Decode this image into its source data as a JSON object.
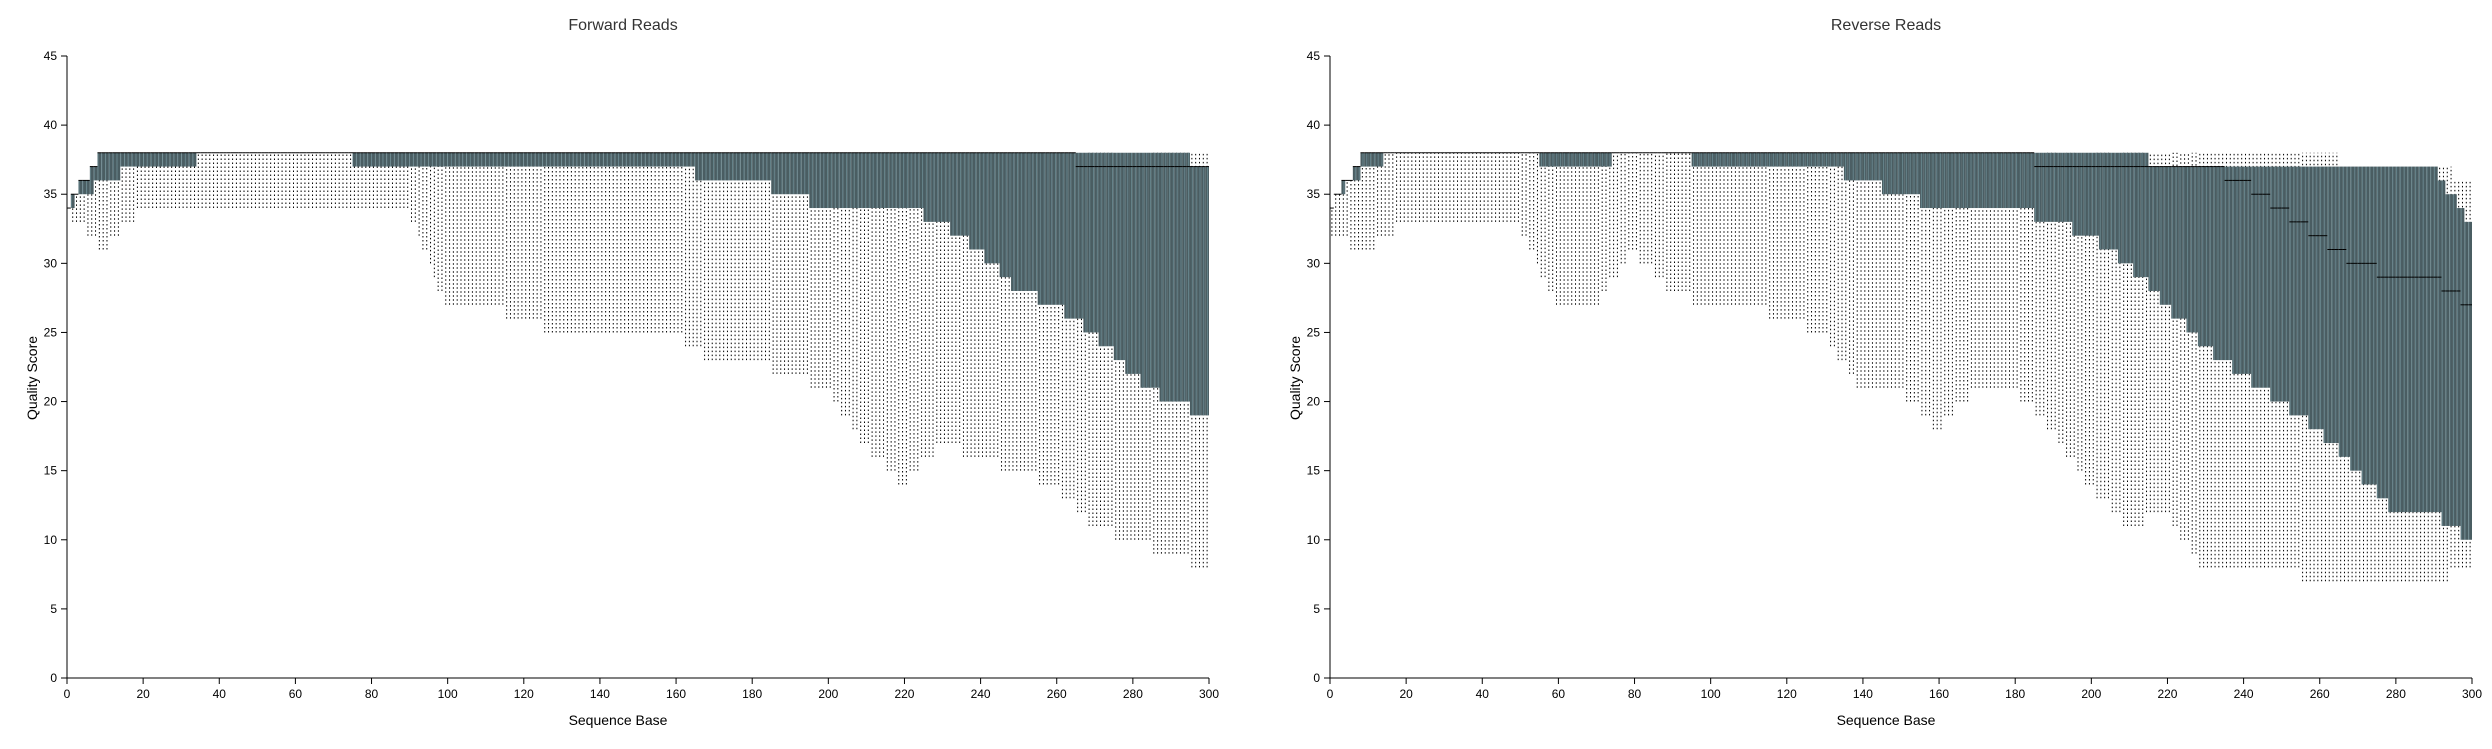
{
  "colors": {
    "box": "#4a5d62",
    "box_stripe": "#6e8e96",
    "whisker": "#000000",
    "axis": "#000000"
  },
  "chart_data": [
    {
      "type": "box",
      "title": "Forward Reads",
      "xlabel": "Sequence Base",
      "ylabel": "Quality Score",
      "xlim": [
        0,
        300
      ],
      "ylim": [
        0,
        45
      ],
      "x_ticks": [
        "0",
        "20",
        "40",
        "60",
        "80",
        "100",
        "120",
        "140",
        "160",
        "180",
        "200",
        "220",
        "240",
        "260",
        "280",
        "300"
      ],
      "y_ticks": [
        "0",
        "5",
        "10",
        "15",
        "20",
        "25",
        "30",
        "35",
        "40",
        "45"
      ],
      "grid": false,
      "legend": "none",
      "x": [
        0,
        10,
        20,
        30,
        40,
        50,
        60,
        70,
        80,
        90,
        100,
        110,
        120,
        130,
        140,
        150,
        160,
        170,
        180,
        190,
        200,
        210,
        220,
        230,
        240,
        250,
        260,
        270,
        280,
        290,
        300
      ],
      "q1": [
        34,
        36,
        37,
        37,
        38,
        38,
        38,
        38,
        37,
        37,
        37,
        37,
        37,
        37,
        37,
        37,
        37,
        36,
        36,
        35,
        34,
        34,
        34,
        33,
        31,
        28,
        27,
        25,
        22,
        20,
        19
      ],
      "median": [
        34,
        38,
        38,
        38,
        38,
        38,
        38,
        38,
        38,
        38,
        38,
        38,
        38,
        38,
        38,
        38,
        38,
        38,
        38,
        38,
        38,
        38,
        38,
        38,
        38,
        38,
        38,
        37,
        37,
        37,
        37
      ],
      "q3": [
        34,
        38,
        38,
        38,
        38,
        38,
        38,
        38,
        38,
        38,
        38,
        38,
        38,
        38,
        38,
        38,
        38,
        38,
        38,
        38,
        38,
        38,
        38,
        38,
        38,
        38,
        38,
        38,
        38,
        38,
        37
      ],
      "low": [
        34,
        31,
        34,
        34,
        34,
        34,
        34,
        34,
        34,
        34,
        27,
        27,
        26,
        25,
        25,
        25,
        25,
        23,
        23,
        22,
        21,
        17,
        14,
        17,
        16,
        15,
        14,
        11,
        10,
        9,
        8
      ],
      "high": [
        34,
        38,
        38,
        38,
        38,
        38,
        38,
        38,
        38,
        38,
        38,
        38,
        38,
        38,
        38,
        38,
        38,
        38,
        38,
        38,
        38,
        38,
        38,
        38,
        38,
        38,
        38,
        38,
        38,
        38,
        38
      ]
    },
    {
      "type": "box",
      "title": "Reverse Reads",
      "xlabel": "Sequence Base",
      "ylabel": "Quality Score",
      "xlim": [
        0,
        300
      ],
      "ylim": [
        0,
        45
      ],
      "x_ticks": [
        "0",
        "20",
        "40",
        "60",
        "80",
        "100",
        "120",
        "140",
        "160",
        "180",
        "200",
        "220",
        "240",
        "260",
        "280",
        "300"
      ],
      "y_ticks": [
        "0",
        "5",
        "10",
        "15",
        "20",
        "25",
        "30",
        "35",
        "40",
        "45"
      ],
      "grid": false,
      "legend": "none",
      "x": [
        0,
        10,
        20,
        30,
        40,
        50,
        60,
        70,
        80,
        90,
        100,
        110,
        120,
        130,
        140,
        150,
        160,
        170,
        180,
        190,
        200,
        210,
        220,
        230,
        240,
        250,
        260,
        270,
        280,
        290,
        300
      ],
      "q1": [
        34,
        37,
        38,
        38,
        38,
        38,
        37,
        37,
        38,
        38,
        37,
        37,
        37,
        37,
        36,
        35,
        34,
        34,
        34,
        33,
        32,
        30,
        27,
        24,
        22,
        20,
        18,
        15,
        12,
        12,
        10
      ],
      "median": [
        34,
        38,
        38,
        38,
        38,
        38,
        38,
        38,
        38,
        38,
        38,
        38,
        38,
        38,
        38,
        38,
        38,
        38,
        38,
        37,
        37,
        37,
        37,
        37,
        36,
        34,
        32,
        30,
        29,
        29,
        27
      ],
      "q3": [
        34,
        38,
        38,
        38,
        38,
        38,
        38,
        38,
        38,
        38,
        38,
        38,
        38,
        38,
        38,
        38,
        38,
        38,
        38,
        38,
        38,
        38,
        37,
        37,
        37,
        37,
        37,
        37,
        37,
        37,
        33
      ],
      "low": [
        32,
        31,
        33,
        33,
        33,
        33,
        27,
        27,
        31,
        28,
        27,
        27,
        26,
        25,
        21,
        21,
        18,
        21,
        21,
        18,
        14,
        11,
        12,
        8,
        8,
        8,
        7,
        7,
        7,
        7,
        8
      ],
      "high": [
        34,
        38,
        38,
        38,
        38,
        38,
        38,
        38,
        38,
        38,
        38,
        38,
        38,
        38,
        38,
        38,
        38,
        38,
        38,
        38,
        38,
        38,
        38,
        38,
        38,
        38,
        38,
        37,
        37,
        37,
        36
      ]
    }
  ]
}
